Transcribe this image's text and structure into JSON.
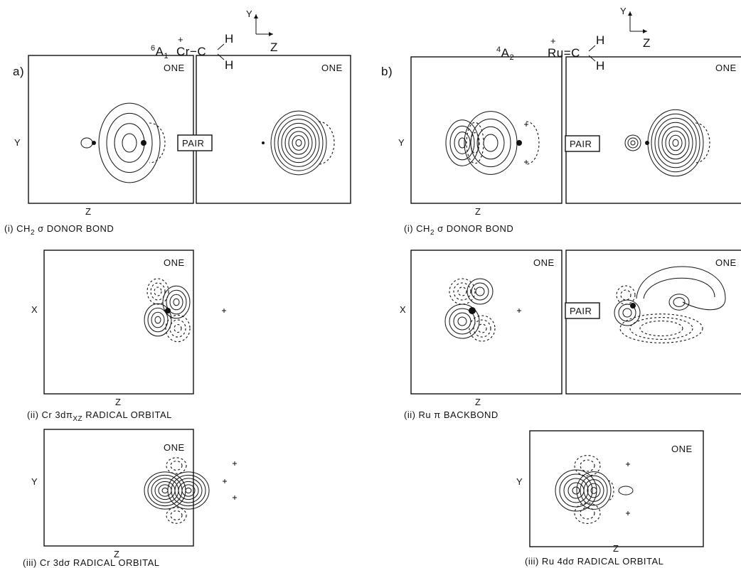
{
  "columns": [
    {
      "label": "a)",
      "state": {
        "sup": "6",
        "term": "A",
        "sub": "1"
      },
      "molecule": {
        "charge": "+",
        "metal": "Cr",
        "bond": "−",
        "carbon": "C",
        "h_top": "H",
        "h_bottom": "H"
      },
      "axes": {
        "vertical": "Y",
        "horizontal": "Z"
      },
      "panels": [
        {
          "tags": [
            "ONE",
            "ONE"
          ],
          "pair": "PAIR",
          "left_axis": "Y",
          "bottom_axis": "Z",
          "caption": [
            "(i) CH",
            "2",
            " σ DONOR BOND"
          ]
        },
        {
          "tags": [
            "ONE"
          ],
          "left_axis": "X",
          "bottom_axis": "Z",
          "caption": [
            "(ii) Cr 3dπ",
            "XZ",
            " RADICAL ORBITAL"
          ]
        },
        {
          "tags": [
            "ONE"
          ],
          "left_axis": "Y",
          "bottom_axis": "Z",
          "caption": [
            "(iii) Cr 3dσ RADICAL ORBITAL"
          ]
        }
      ]
    },
    {
      "label": "b)",
      "state": {
        "sup": "4",
        "term": "A",
        "sub": "2"
      },
      "molecule": {
        "charge": "+",
        "metal": "Ru",
        "bond": "=",
        "carbon": "C",
        "h_top": "H",
        "h_bottom": "H"
      },
      "axes": {
        "vertical": "Y",
        "horizontal": "Z"
      },
      "panels": [
        {
          "tags": [
            "ONE"
          ],
          "pair": "PAIR",
          "left_axis": "Y",
          "bottom_axis": "Z",
          "caption": [
            "(i) CH",
            "2",
            " σ DONOR BOND"
          ]
        },
        {
          "tags": [
            "ONE",
            "ONE"
          ],
          "pair": "PAIR",
          "left_axis": "X",
          "bottom_axis": "Z",
          "caption": [
            "(ii) Ru π BACKBOND"
          ]
        },
        {
          "tags": [
            "ONE"
          ],
          "left_axis": "Y",
          "bottom_axis": "Z",
          "caption": [
            "(iii) Ru 4dσ RADICAL ORBITAL"
          ]
        }
      ]
    }
  ]
}
